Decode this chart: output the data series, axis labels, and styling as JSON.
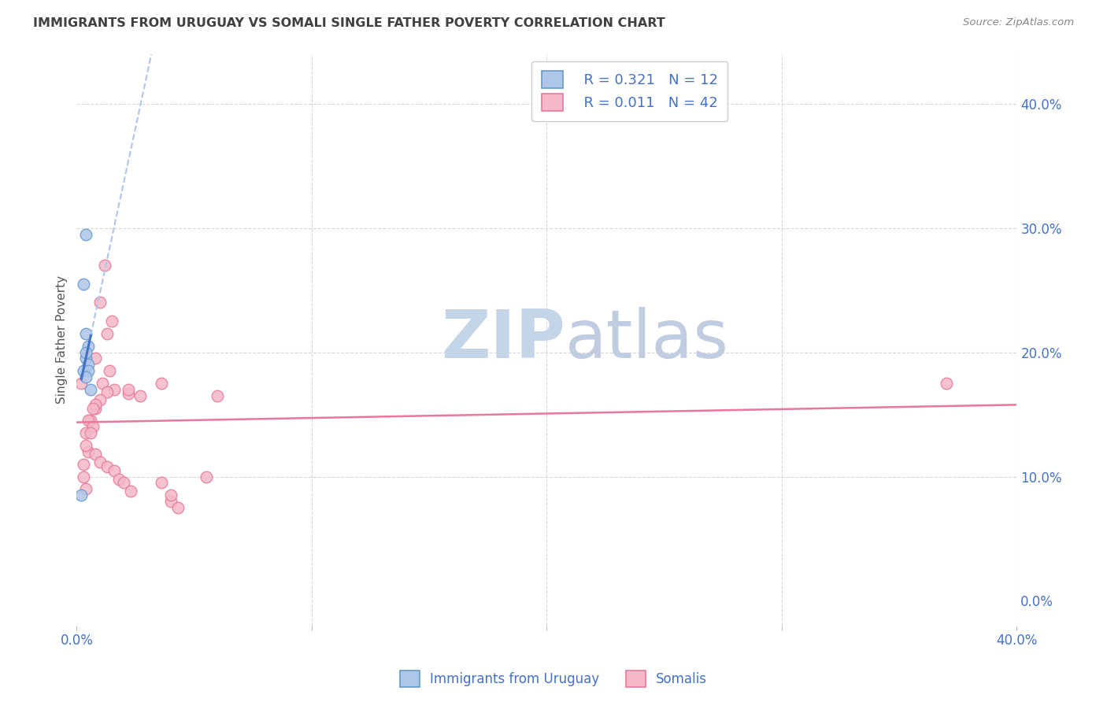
{
  "title": "IMMIGRANTS FROM URUGUAY VS SOMALI SINGLE FATHER POVERTY CORRELATION CHART",
  "source": "Source: ZipAtlas.com",
  "ylabel": "Single Father Poverty",
  "legend_blue_R": "R = 0.321",
  "legend_blue_N": "N = 12",
  "legend_pink_R": "R = 0.011",
  "legend_pink_N": "N = 42",
  "legend_label_blue": "Immigrants from Uruguay",
  "legend_label_pink": "Somalis",
  "xlim": [
    0.0,
    0.4
  ],
  "ylim": [
    -0.02,
    0.44
  ],
  "blue_scatter_x": [
    0.004,
    0.003,
    0.004,
    0.005,
    0.004,
    0.003,
    0.004,
    0.005,
    0.005,
    0.004,
    0.002,
    0.006
  ],
  "blue_scatter_y": [
    0.295,
    0.255,
    0.215,
    0.205,
    0.195,
    0.185,
    0.2,
    0.19,
    0.185,
    0.18,
    0.085,
    0.17
  ],
  "pink_scatter_x": [
    0.002,
    0.008,
    0.006,
    0.004,
    0.005,
    0.003,
    0.003,
    0.004,
    0.012,
    0.01,
    0.015,
    0.013,
    0.014,
    0.011,
    0.016,
    0.013,
    0.022,
    0.027,
    0.01,
    0.008,
    0.007,
    0.005,
    0.007,
    0.006,
    0.004,
    0.008,
    0.01,
    0.013,
    0.016,
    0.018,
    0.02,
    0.023,
    0.036,
    0.04,
    0.043,
    0.055,
    0.37,
    0.008,
    0.022,
    0.036,
    0.04,
    0.06
  ],
  "pink_scatter_y": [
    0.175,
    0.155,
    0.145,
    0.135,
    0.12,
    0.11,
    0.1,
    0.09,
    0.27,
    0.24,
    0.225,
    0.215,
    0.185,
    0.175,
    0.17,
    0.168,
    0.167,
    0.165,
    0.162,
    0.158,
    0.155,
    0.145,
    0.14,
    0.135,
    0.125,
    0.118,
    0.112,
    0.108,
    0.105,
    0.098,
    0.095,
    0.088,
    0.175,
    0.08,
    0.075,
    0.1,
    0.175,
    0.195,
    0.17,
    0.095,
    0.085,
    0.165
  ],
  "background_color": "#ffffff",
  "blue_color": "#aec6e8",
  "blue_edge_color": "#6699cc",
  "pink_color": "#f4b8c8",
  "pink_edge_color": "#e8799a",
  "blue_line_color": "#4472c4",
  "blue_dash_color": "#aec6e8",
  "pink_line_color": "#e8799a",
  "grid_color": "#d8d8d8",
  "watermark_zip_color": "#c5d5e8",
  "watermark_atlas_color": "#c0cce0",
  "title_color": "#404040",
  "axis_tick_color": "#4472c4",
  "ylabel_color": "#555555",
  "marker_size": 110,
  "xtick_positions": [
    0.0,
    0.1,
    0.2,
    0.3,
    0.4
  ],
  "ytick_positions": [
    0.0,
    0.1,
    0.2,
    0.3,
    0.4
  ]
}
